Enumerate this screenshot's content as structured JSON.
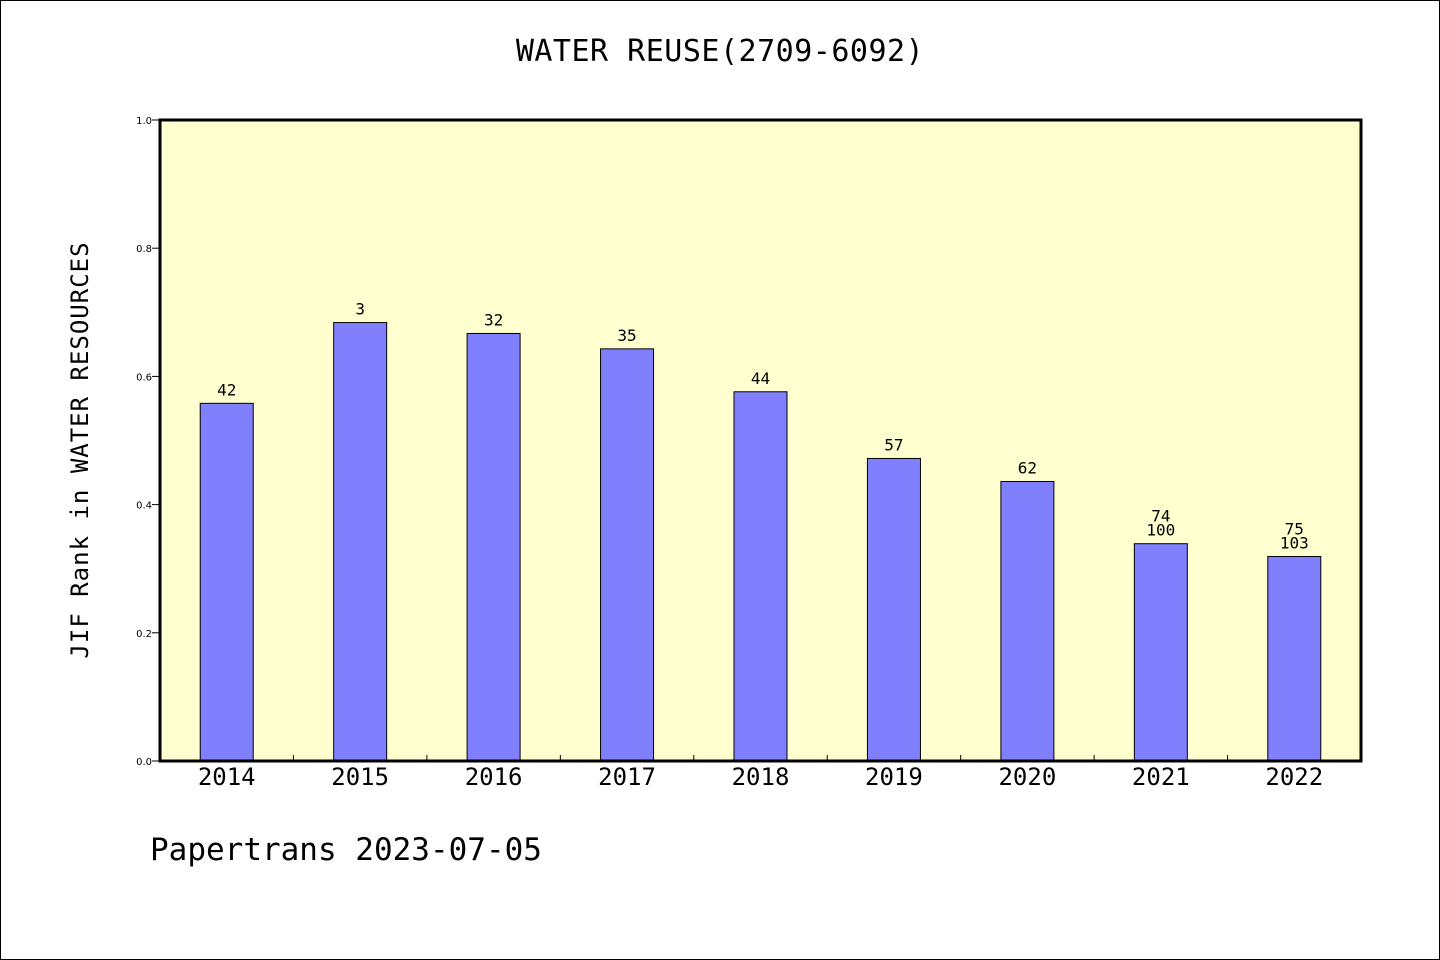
{
  "title": "WATER REUSE(2709-6092)",
  "footer": "Papertrans 2023-07-05",
  "colors": {
    "plot_background": "#ffffd0",
    "bar_fill": "#8080ff",
    "bar_stroke": "#000000",
    "axis": "#000000"
  },
  "chart_data": {
    "type": "bar",
    "title": "WATER REUSE(2709-6092)",
    "xlabel": "",
    "ylabel": "JIF Rank in WATER RESOURCES",
    "ylim": [
      0,
      1.0
    ],
    "y_ticks": [
      "0.0",
      "0.2",
      "0.4",
      "0.6",
      "0.8",
      "1.0"
    ],
    "grid": false,
    "categories": [
      "2014",
      "2015",
      "2016",
      "2017",
      "2018",
      "2019",
      "2020",
      "2021",
      "2022"
    ],
    "values": [
      0.558,
      0.684,
      0.667,
      0.643,
      0.576,
      0.472,
      0.436,
      0.339,
      0.319
    ],
    "labels": [
      [
        "42"
      ],
      [
        "3"
      ],
      [
        "32"
      ],
      [
        "35"
      ],
      [
        "44"
      ],
      [
        "57"
      ],
      [
        "62"
      ],
      [
        "74",
        "100"
      ],
      [
        "75",
        "103"
      ]
    ]
  }
}
